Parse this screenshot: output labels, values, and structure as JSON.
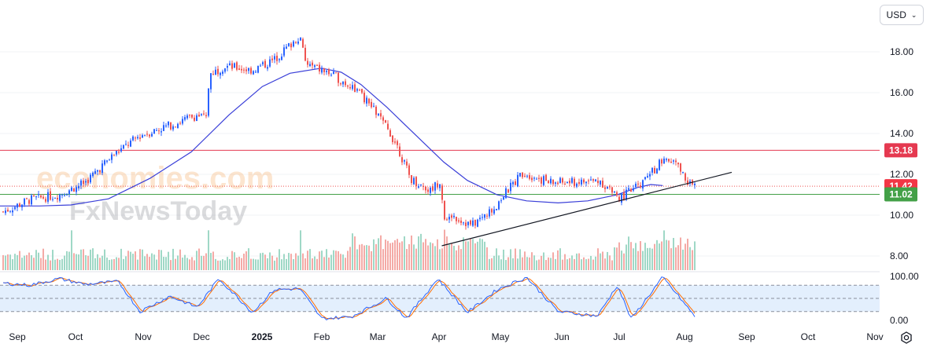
{
  "currency": {
    "label": "USD"
  },
  "watermark": {
    "brand": "economies.com",
    "brand2": "FxNewsToday"
  },
  "axis": {
    "price_ticks": [
      "18.00",
      "16.00",
      "14.00",
      "12.00",
      "10.00",
      "8.00"
    ],
    "osc_ticks": [
      "100.00",
      "0.00"
    ],
    "month_labels": [
      "Sep",
      "Oct",
      "Nov",
      "Dec",
      "2025",
      "Feb",
      "Mar",
      "Apr",
      "May",
      "Jun",
      "Jul",
      "Aug",
      "Sep",
      "Oct",
      "Nov"
    ]
  },
  "colors": {
    "up": "#2962ff",
    "down": "#ef5350",
    "ma": "#3a3fd8",
    "resistance": "#e53950",
    "support": "#43a047",
    "tag_last": "#f23645",
    "stoch_k": "#2962ff",
    "stoch_d": "#ff6d00",
    "band": "#e3effd"
  },
  "levels": {
    "resistance": "13.18",
    "last": "11.42",
    "support": "11.02"
  },
  "chart_data": {
    "type": "candlestick",
    "title": "",
    "timeframe": "daily",
    "x_range": [
      "2024-08-26",
      "2025-11-15"
    ],
    "y_range": [
      7.6,
      19.8
    ],
    "horizontal_levels": [
      {
        "value": 13.18,
        "color": "#e53950",
        "label": "13.18"
      },
      {
        "value": 11.02,
        "color": "#43a047",
        "label": "11.02"
      },
      {
        "value": 11.42,
        "color": "#ef5350",
        "style": "dotted",
        "label": "11.42"
      }
    ],
    "trendline": {
      "from": {
        "date": "2025-04-07",
        "price": 8.5
      },
      "to": {
        "date": "2025-09-01",
        "price": 12.1
      }
    },
    "moving_average": [
      [
        "2024-08-26",
        10.45
      ],
      [
        "2024-09-15",
        10.45
      ],
      [
        "2024-10-01",
        10.5
      ],
      [
        "2024-10-20",
        10.8
      ],
      [
        "2024-11-10",
        11.8
      ],
      [
        "2024-12-01",
        13.1
      ],
      [
        "2024-12-20",
        14.9
      ],
      [
        "2025-01-06",
        16.3
      ],
      [
        "2025-01-20",
        16.95
      ],
      [
        "2025-02-05",
        17.2
      ],
      [
        "2025-02-15",
        17.0
      ],
      [
        "2025-02-25",
        16.4
      ],
      [
        "2025-03-10",
        15.3
      ],
      [
        "2025-03-25",
        13.9
      ],
      [
        "2025-04-08",
        12.6
      ],
      [
        "2025-04-20",
        11.7
      ],
      [
        "2025-05-05",
        11.0
      ],
      [
        "2025-05-20",
        10.7
      ],
      [
        "2025-06-05",
        10.6
      ],
      [
        "2025-06-20",
        10.7
      ],
      [
        "2025-07-05",
        11.0
      ],
      [
        "2025-07-15",
        11.35
      ],
      [
        "2025-07-22",
        11.5
      ],
      [
        "2025-07-28",
        11.45
      ]
    ],
    "price_path": [
      [
        "2024-08-26",
        10.1
      ],
      [
        "2024-09-10",
        10.75
      ],
      [
        "2024-09-25",
        11.0
      ],
      [
        "2024-10-08",
        11.6
      ],
      [
        "2024-10-22",
        12.9
      ],
      [
        "2024-11-05",
        13.9
      ],
      [
        "2024-11-20",
        14.4
      ],
      [
        "2024-12-04",
        14.9
      ],
      [
        "2024-12-09",
        14.7
      ],
      [
        "2024-12-10",
        16.9
      ],
      [
        "2024-12-18",
        17.3
      ],
      [
        "2025-01-01",
        17.1
      ],
      [
        "2025-01-12",
        17.6
      ],
      [
        "2025-01-25",
        18.8
      ],
      [
        "2025-01-28",
        17.4
      ],
      [
        "2025-02-10",
        16.9
      ],
      [
        "2025-02-22",
        16.2
      ],
      [
        "2025-03-05",
        15.0
      ],
      [
        "2025-03-15",
        13.5
      ],
      [
        "2025-03-22",
        11.8
      ],
      [
        "2025-04-01",
        11.2
      ],
      [
        "2025-04-06",
        11.7
      ],
      [
        "2025-04-09",
        9.5
      ],
      [
        "2025-04-12",
        10.0
      ],
      [
        "2025-04-22",
        9.5
      ],
      [
        "2025-05-02",
        10.2
      ],
      [
        "2025-05-12",
        11.4
      ],
      [
        "2025-05-18",
        12.1
      ],
      [
        "2025-06-01",
        11.6
      ],
      [
        "2025-06-15",
        11.6
      ],
      [
        "2025-06-26",
        11.7
      ],
      [
        "2025-07-06",
        10.8
      ],
      [
        "2025-07-18",
        11.6
      ],
      [
        "2025-07-27",
        12.6
      ],
      [
        "2025-08-03",
        12.6
      ],
      [
        "2025-08-10",
        11.6
      ],
      [
        "2025-08-14",
        11.42
      ]
    ],
    "stochastic": {
      "range": [
        0,
        100
      ],
      "upper_band": 80,
      "lower_band": 20,
      "midline": 50,
      "k_path": [
        [
          "2024-08-26",
          85
        ],
        [
          "2024-09-10",
          80
        ],
        [
          "2024-09-25",
          95
        ],
        [
          "2024-10-08",
          82
        ],
        [
          "2024-10-25",
          88
        ],
        [
          "2024-11-05",
          20
        ],
        [
          "2024-11-20",
          55
        ],
        [
          "2024-12-04",
          30
        ],
        [
          "2024-12-15",
          95
        ],
        [
          "2025-01-01",
          18
        ],
        [
          "2025-01-12",
          70
        ],
        [
          "2025-01-25",
          72
        ],
        [
          "2025-02-05",
          4
        ],
        [
          "2025-02-20",
          8
        ],
        [
          "2025-03-10",
          50
        ],
        [
          "2025-03-20",
          5
        ],
        [
          "2025-04-05",
          95
        ],
        [
          "2025-04-20",
          18
        ],
        [
          "2025-05-05",
          70
        ],
        [
          "2025-05-20",
          98
        ],
        [
          "2025-06-05",
          20
        ],
        [
          "2025-06-25",
          10
        ],
        [
          "2025-07-05",
          80
        ],
        [
          "2025-07-12",
          3
        ],
        [
          "2025-07-28",
          98
        ],
        [
          "2025-08-05",
          55
        ],
        [
          "2025-08-14",
          5
        ]
      ]
    },
    "volume": {
      "range": [
        0,
        1
      ],
      "spikes": [
        "2024-10-01",
        "2024-12-10",
        "2025-01-25",
        "2025-04-08",
        "2025-07-29"
      ]
    }
  }
}
